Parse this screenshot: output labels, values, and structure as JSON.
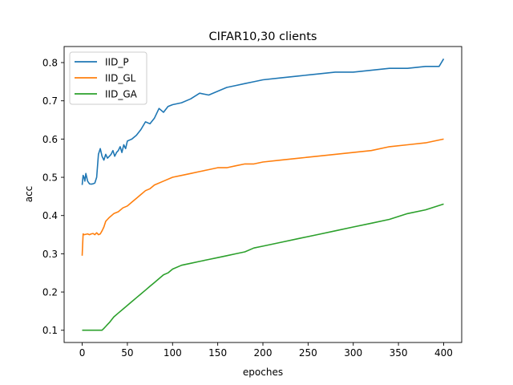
{
  "chart_data": {
    "type": "line",
    "title": "CIFAR10,30 clients",
    "xlabel": "epoches",
    "ylabel": "acc",
    "xlim": [
      -20,
      420
    ],
    "ylim": [
      0.068,
      0.842
    ],
    "xticks": [
      0,
      50,
      100,
      150,
      200,
      250,
      300,
      350,
      400
    ],
    "yticks": [
      0.1,
      0.2,
      0.3,
      0.4,
      0.5,
      0.6,
      0.7,
      0.8
    ],
    "grid": false,
    "legend": "top-left",
    "series": [
      {
        "name": "IID_P",
        "color": "#1f77b4",
        "x": [
          0,
          1,
          2,
          3,
          4,
          5,
          6,
          8,
          10,
          12,
          14,
          16,
          18,
          20,
          22,
          24,
          26,
          28,
          30,
          32,
          34,
          36,
          38,
          40,
          42,
          44,
          46,
          48,
          50,
          55,
          60,
          65,
          70,
          75,
          80,
          85,
          90,
          95,
          100,
          110,
          120,
          130,
          140,
          150,
          160,
          170,
          180,
          190,
          200,
          220,
          240,
          260,
          280,
          300,
          320,
          340,
          360,
          380,
          395,
          400
        ],
        "y": [
          0.48,
          0.505,
          0.5,
          0.49,
          0.51,
          0.5,
          0.49,
          0.483,
          0.482,
          0.483,
          0.485,
          0.5,
          0.56,
          0.575,
          0.555,
          0.545,
          0.56,
          0.55,
          0.555,
          0.56,
          0.57,
          0.555,
          0.565,
          0.57,
          0.58,
          0.565,
          0.585,
          0.575,
          0.595,
          0.6,
          0.61,
          0.625,
          0.645,
          0.64,
          0.655,
          0.68,
          0.67,
          0.685,
          0.69,
          0.695,
          0.705,
          0.72,
          0.715,
          0.725,
          0.735,
          0.74,
          0.745,
          0.75,
          0.755,
          0.76,
          0.765,
          0.77,
          0.775,
          0.775,
          0.78,
          0.785,
          0.785,
          0.79,
          0.79,
          0.81
        ]
      },
      {
        "name": "IID_GL",
        "color": "#ff7f0e",
        "x": [
          0,
          1,
          2,
          4,
          6,
          8,
          10,
          12,
          14,
          16,
          18,
          20,
          22,
          24,
          26,
          28,
          30,
          35,
          40,
          45,
          50,
          55,
          60,
          65,
          70,
          75,
          80,
          90,
          100,
          110,
          120,
          130,
          140,
          150,
          160,
          170,
          180,
          190,
          200,
          220,
          240,
          260,
          280,
          300,
          320,
          340,
          360,
          380,
          400
        ],
        "y": [
          0.295,
          0.352,
          0.35,
          0.351,
          0.352,
          0.35,
          0.352,
          0.353,
          0.35,
          0.355,
          0.35,
          0.352,
          0.36,
          0.37,
          0.385,
          0.39,
          0.395,
          0.405,
          0.41,
          0.42,
          0.425,
          0.435,
          0.445,
          0.455,
          0.465,
          0.47,
          0.48,
          0.49,
          0.5,
          0.505,
          0.51,
          0.515,
          0.52,
          0.525,
          0.525,
          0.53,
          0.535,
          0.535,
          0.54,
          0.545,
          0.55,
          0.555,
          0.56,
          0.565,
          0.57,
          0.58,
          0.585,
          0.59,
          0.6
        ]
      },
      {
        "name": "IID_GA",
        "color": "#2ca02c",
        "x": [
          0,
          2,
          4,
          6,
          8,
          10,
          12,
          14,
          16,
          18,
          20,
          22,
          24,
          26,
          28,
          30,
          35,
          40,
          45,
          50,
          55,
          60,
          65,
          70,
          75,
          80,
          85,
          90,
          95,
          100,
          110,
          120,
          130,
          140,
          150,
          160,
          170,
          180,
          190,
          200,
          220,
          240,
          260,
          280,
          300,
          320,
          340,
          360,
          380,
          400
        ],
        "y": [
          0.1,
          0.1,
          0.1,
          0.1,
          0.1,
          0.1,
          0.1,
          0.1,
          0.1,
          0.1,
          0.1,
          0.1,
          0.105,
          0.11,
          0.115,
          0.12,
          0.135,
          0.145,
          0.155,
          0.165,
          0.175,
          0.185,
          0.195,
          0.205,
          0.215,
          0.225,
          0.235,
          0.245,
          0.25,
          0.26,
          0.27,
          0.275,
          0.28,
          0.285,
          0.29,
          0.295,
          0.3,
          0.305,
          0.315,
          0.32,
          0.33,
          0.34,
          0.35,
          0.36,
          0.37,
          0.38,
          0.39,
          0.405,
          0.415,
          0.43
        ]
      }
    ]
  }
}
